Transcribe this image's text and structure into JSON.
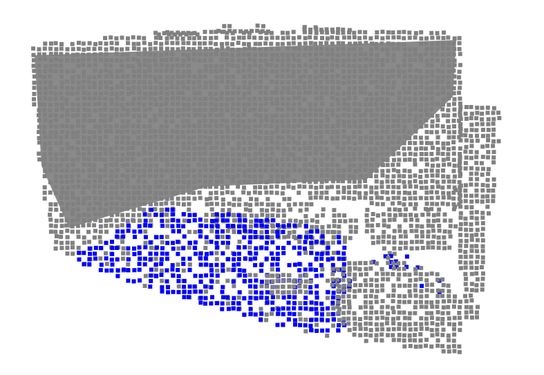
{
  "viewer": {
    "background_color": "#ffffff",
    "point_color": "#808080",
    "highlight_color": "#0000ff",
    "voxel_size": 6,
    "voxel_spacing": 8
  },
  "segments": [
    {
      "id": "wall",
      "color": "#808080"
    },
    {
      "id": "floor-highlight",
      "color": "#0000ff"
    }
  ]
}
